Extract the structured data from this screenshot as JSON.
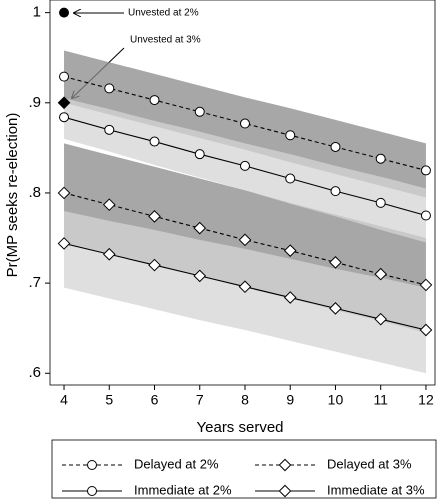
{
  "chart_data": {
    "type": "line",
    "xlabel": "Years served",
    "ylabel": "Pr(MP seeks re-election)",
    "x": [
      4,
      5,
      6,
      7,
      8,
      9,
      10,
      11,
      12
    ],
    "xlim": [
      3.69,
      12.2
    ],
    "xticks": [
      4,
      5,
      6,
      7,
      8,
      9,
      10,
      11,
      12
    ],
    "ylim": [
      0.587,
      1.014
    ],
    "yticks": [
      {
        "value": 0.6,
        "label": ".6"
      },
      {
        "value": 0.7,
        "label": ".7"
      },
      {
        "value": 0.8,
        "label": ".8"
      },
      {
        "value": 0.9,
        "label": ".9"
      },
      1
    ],
    "series": [
      {
        "name": "Delayed at 2%",
        "color": "#000000",
        "dashed": true,
        "marker": "circle",
        "band_color": "#8a8a8a",
        "values": [
          0.929,
          0.916,
          0.903,
          0.89,
          0.877,
          0.864,
          0.851,
          0.838,
          0.825
        ],
        "ci_lower": [
          0.9,
          0.887,
          0.874,
          0.861,
          0.848,
          0.834,
          0.821,
          0.808,
          0.795
        ],
        "ci_upper": [
          0.958,
          0.945,
          0.932,
          0.919,
          0.906,
          0.894,
          0.881,
          0.868,
          0.855
        ]
      },
      {
        "name": "Delayed at 3%",
        "color": "#000000",
        "dashed": true,
        "marker": "diamond",
        "band_color": "#8a8a8a",
        "values": [
          0.8,
          0.787,
          0.774,
          0.761,
          0.748,
          0.736,
          0.723,
          0.71,
          0.698
        ],
        "ci_lower": [
          0.745,
          0.733,
          0.72,
          0.708,
          0.695,
          0.683,
          0.67,
          0.658,
          0.645
        ],
        "ci_upper": [
          0.855,
          0.842,
          0.829,
          0.816,
          0.803,
          0.789,
          0.776,
          0.763,
          0.75
        ]
      },
      {
        "name": "Immediate at 2%",
        "color": "#000000",
        "dashed": false,
        "marker": "circle",
        "band_color": "#d4d4d4",
        "values": [
          0.884,
          0.87,
          0.857,
          0.843,
          0.83,
          0.816,
          0.802,
          0.789,
          0.775
        ],
        "ci_lower": [
          0.86,
          0.846,
          0.831,
          0.817,
          0.803,
          0.788,
          0.774,
          0.759,
          0.745
        ],
        "ci_upper": [
          0.905,
          0.893,
          0.88,
          0.868,
          0.855,
          0.843,
          0.83,
          0.818,
          0.805
        ]
      },
      {
        "name": "Immediate at 3%",
        "color": "#000000",
        "dashed": false,
        "marker": "diamond",
        "band_color": "#d4d4d4",
        "values": [
          0.744,
          0.732,
          0.72,
          0.708,
          0.696,
          0.684,
          0.672,
          0.66,
          0.648
        ],
        "ci_lower": [
          0.695,
          0.683,
          0.671,
          0.659,
          0.648,
          0.636,
          0.624,
          0.612,
          0.6
        ],
        "ci_upper": [
          0.78,
          0.769,
          0.759,
          0.748,
          0.738,
          0.727,
          0.716,
          0.706,
          0.695
        ]
      }
    ],
    "points": [
      {
        "label": "Unvested at 2%",
        "x": 4,
        "y": 1,
        "marker": "circle"
      },
      {
        "label": "Unvested at 3%",
        "x": 4,
        "y": 0.9,
        "marker": "diamond"
      }
    ]
  }
}
